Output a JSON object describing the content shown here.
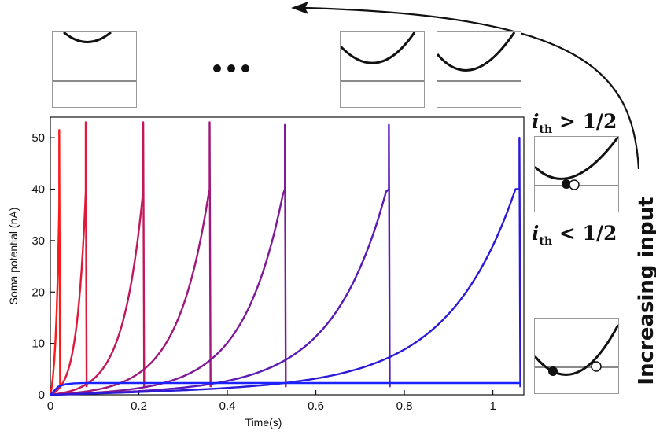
{
  "labels": {
    "ith_greater": "> 1/2",
    "ith_less": "< 1/2",
    "ith_symbol": "i",
    "ith_subscript": "th",
    "increasing_input": "Increasing input",
    "ellipsis": "• • •"
  },
  "chart_data": {
    "type": "line",
    "title": "",
    "xlabel": "Time(s)",
    "ylabel": "Soma potential (nA)",
    "xlim": [
      0,
      1.07
    ],
    "ylim": [
      0,
      54
    ],
    "xticks": [
      "0",
      "0.2",
      "0.4",
      "0.6",
      "0.8",
      "1"
    ],
    "xtick_values": [
      0,
      0.2,
      0.4,
      0.6,
      0.8,
      1.0
    ],
    "yticks": [
      "0",
      "10",
      "20",
      "30",
      "40",
      "50"
    ],
    "ytick_values": [
      0,
      10,
      20,
      30,
      40,
      50
    ],
    "grid": false,
    "series": [
      {
        "color": "#ff1a1a",
        "spike_time": 0.02,
        "peak": 51.5,
        "tau": 0.008
      },
      {
        "color": "#e0183a",
        "spike_time": 0.08,
        "peak": 53,
        "tau": 0.02
      },
      {
        "color": "#c2175a",
        "spike_time": 0.21,
        "peak": 53,
        "tau": 0.045
      },
      {
        "color": "#a0187a",
        "spike_time": 0.36,
        "peak": 53,
        "tau": 0.07
      },
      {
        "color": "#7e1a98",
        "spike_time": 0.53,
        "peak": 52.5,
        "tau": 0.09
      },
      {
        "color": "#5a1ab8",
        "spike_time": 0.765,
        "peak": 52.5,
        "tau": 0.12
      },
      {
        "color": "#2a1ad8",
        "spike_time": 1.06,
        "peak": 50,
        "tau": 0.15
      },
      {
        "color": "#1a22ff",
        "spike_time": null,
        "plateau": 2.3
      }
    ]
  },
  "colors": {
    "axis": "#111111",
    "inset_border": "#9a9a9a",
    "inset_curve": "#111111",
    "inset_line": "#8a8a8a"
  }
}
